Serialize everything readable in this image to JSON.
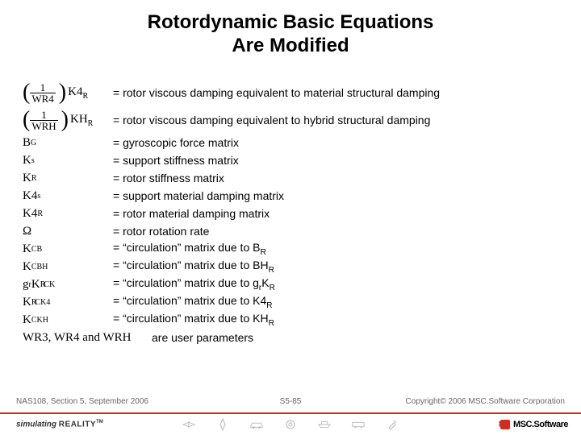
{
  "title": {
    "line1": "Rotordynamic Basic Equations",
    "line2": "Are Modified",
    "fontsize_pt": 24,
    "color": "#000000"
  },
  "definitions": [
    {
      "symbol_html": "paren-frac:1:WR4:K4:R",
      "def": "= rotor viscous damping equivalent to material structural damping"
    },
    {
      "symbol_html": "paren-frac:1:WRH:KH:R",
      "def": "= rotor viscous damping equivalent to hybrid structural damping"
    },
    {
      "symbol_html": "B<sup class='sup'>G</sup>",
      "def": "= gyroscopic force matrix"
    },
    {
      "symbol_html": "K<span class='sub'>s</span>",
      "def": "= support stiffness matrix"
    },
    {
      "symbol_html": "K<span class='sub'>R</span>",
      "def": "= rotor stiffness matrix"
    },
    {
      "symbol_html": "K4<span class='sub'>s</span>",
      "def": "= support material damping matrix"
    },
    {
      "symbol_html": "K4<span class='sub'>R</span>",
      "def": "= rotor material damping matrix"
    },
    {
      "symbol_html": "Ω",
      "def": "= rotor rotation rate"
    },
    {
      "symbol_html": "K<sup class='sup'>CB</sup>",
      "def": "= “circulation” matrix due to B",
      "def_sub": "R"
    },
    {
      "symbol_html": "K<sup class='sup'>CBH</sup>",
      "def": "= “circulation” matrix due to BH",
      "def_sub": "R"
    },
    {
      "symbol_html": "g<span class='sub'>r</span>K<span class='sub'>R</span><sup class='sup' style='margin-left:-2px'>CK</sup>",
      "def": "= “circulation” matrix due to g",
      "def_sub": "r",
      "def_tail": "K",
      "def_tail_sub": "R"
    },
    {
      "symbol_html": "K<span class='sub'>R</span><sup class='sup' style='margin-left:-2px'>CK4</sup>",
      "def": "= “circulation” matrix due to K4",
      "def_sub": "R"
    },
    {
      "symbol_html": "K<sup class='sup'>CKH</sup>",
      "def": "= “circulation” matrix due to KH",
      "def_sub": "R"
    },
    {
      "symbol_html": "WR3, WR4 and WRH",
      "def": "are user parameters",
      "wide": true
    }
  ],
  "footer": {
    "left": "NAS108, Section 5, September 2006",
    "mid": "S5-85",
    "right": "Copyright© 2006 MSC.Software Corporation",
    "page": "85",
    "brand_sim": "simulating",
    "brand_real": "REALITY",
    "brand_tm": "TM",
    "msc": "MSC.Software"
  },
  "colors": {
    "accent": "#d52b1e",
    "icon_gray": "#b8b8b8",
    "text": "#000000",
    "meta": "#666666"
  }
}
